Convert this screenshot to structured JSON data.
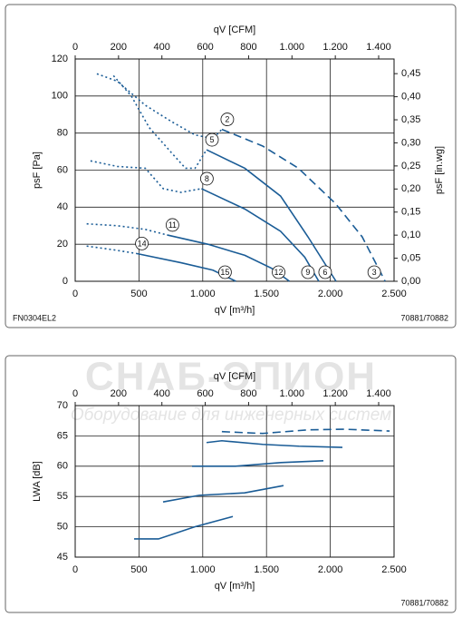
{
  "watermark": {
    "title": "СНАБ-ЭПИОН",
    "subtitle": "Оборудование для инженерных систем"
  },
  "chart_data": [
    {
      "type": "line",
      "x_label": "qV [m³/h]",
      "x2_label": "qV [CFM]",
      "y_label": "psF [Pa]",
      "y2_label": "psF [in.wg]",
      "note_left": "FN0304EL2",
      "note_right": "70881/70882",
      "xlim": [
        0,
        2500
      ],
      "xticks": [
        0,
        500,
        {
          "value": 1000,
          "label": "1.000"
        },
        {
          "value": 1500,
          "label": "1.500"
        },
        {
          "value": 2000,
          "label": "2.000"
        },
        {
          "value": 2500,
          "label": "2.500"
        }
      ],
      "x2lim": [
        0,
        1471
      ],
      "x2ticks": [
        0,
        200,
        400,
        600,
        800,
        {
          "value": 1000,
          "label": "1.000"
        },
        {
          "value": 1200,
          "label": "1.200"
        },
        {
          "value": 1400,
          "label": "1.400"
        }
      ],
      "ylim": [
        0,
        120
      ],
      "yticks": [
        0,
        20,
        40,
        60,
        80,
        100,
        120
      ],
      "y2lim": [
        0,
        0.4818
      ],
      "y2ticks": [
        {
          "value": 0,
          "label": "0,00"
        },
        {
          "value": 0.05,
          "label": "0,05"
        },
        {
          "value": 0.1,
          "label": "0,10"
        },
        {
          "value": 0.15,
          "label": "0,15"
        },
        {
          "value": 0.2,
          "label": "0,20"
        },
        {
          "value": 0.25,
          "label": "0,25"
        },
        {
          "value": 0.3,
          "label": "0,30"
        },
        {
          "value": 0.35,
          "label": "0,35"
        },
        {
          "value": 0.4,
          "label": "0,40"
        },
        {
          "value": 0.45,
          "label": "0,45"
        }
      ],
      "grid": true,
      "series": [
        {
          "color": "#1a5c96",
          "style": "dotted",
          "x": [
            170,
            330,
            550,
            760,
            940,
            1080,
            1150
          ],
          "values": [
            112,
            108,
            95,
            86,
            79,
            77,
            82
          ]
        },
        {
          "color": "#1a5c96",
          "style": "dashed",
          "start_label": "2",
          "end_label": "3",
          "x": [
            1150,
            1470,
            1750,
            2040,
            2250,
            2430
          ],
          "values": [
            82,
            73,
            61,
            42,
            24,
            0
          ]
        },
        {
          "color": "#1a5c96",
          "style": "dotted",
          "x": [
            300,
            440,
            580,
            760,
            865,
            940,
            1030
          ],
          "values": [
            111,
            100,
            83,
            69,
            61,
            61,
            71
          ]
        },
        {
          "color": "#1a5c96",
          "style": "solid",
          "start_label": "5",
          "end_label": "6",
          "x": [
            1030,
            1330,
            1610,
            1825,
            2045
          ],
          "values": [
            71,
            61,
            46,
            24,
            0
          ]
        },
        {
          "color": "#1a5c96",
          "style": "dotted",
          "x": [
            120,
            330,
            550,
            690,
            830,
            990
          ],
          "values": [
            65,
            62,
            61,
            50,
            48,
            50
          ]
        },
        {
          "color": "#1a5c96",
          "style": "solid",
          "start_label": "8",
          "end_label": "9",
          "x": [
            990,
            1330,
            1610,
            1800,
            1910
          ],
          "values": [
            50,
            39,
            27,
            13,
            0
          ]
        },
        {
          "color": "#1a5c96",
          "style": "dotted",
          "x": [
            90,
            330,
            550,
            720
          ],
          "values": [
            31,
            30,
            28,
            25
          ]
        },
        {
          "color": "#1a5c96",
          "style": "solid",
          "start_label": "11",
          "end_label": "12",
          "x": [
            720,
            1040,
            1330,
            1540,
            1680
          ],
          "values": [
            25,
            20,
            14,
            7,
            0
          ]
        },
        {
          "color": "#1a5c96",
          "style": "dotted",
          "x": [
            90,
            300,
            480
          ],
          "values": [
            19,
            17,
            15
          ]
        },
        {
          "color": "#1a5c96",
          "style": "solid",
          "start_label": "14",
          "end_label": "15",
          "x": [
            480,
            830,
            1080,
            1260
          ],
          "values": [
            15,
            10,
            6,
            0
          ]
        }
      ]
    },
    {
      "type": "line",
      "x_label": "qV [m³/h]",
      "x2_label": "qV [CFM]",
      "y_label": "LWA [dB]",
      "note_right": "70881/70882",
      "xlim": [
        0,
        2500
      ],
      "xticks": [
        0,
        500,
        {
          "value": 1000,
          "label": "1.000"
        },
        {
          "value": 1500,
          "label": "1.500"
        },
        {
          "value": 2000,
          "label": "2.000"
        },
        {
          "value": 2500,
          "label": "2.500"
        }
      ],
      "x2lim": [
        0,
        1471
      ],
      "x2ticks": [
        0,
        200,
        400,
        600,
        800,
        {
          "value": 1000,
          "label": "1.000"
        },
        {
          "value": 1200,
          "label": "1.200"
        },
        {
          "value": 1400,
          "label": "1.400"
        }
      ],
      "ylim": [
        45,
        70
      ],
      "yticks": [
        45,
        50,
        55,
        60,
        65,
        70
      ],
      "grid": true,
      "series": [
        {
          "color": "#1a5c96",
          "style": "dashed",
          "x": [
            1150,
            1470,
            1825,
            2110,
            2465
          ],
          "values": [
            65.7,
            65.4,
            66,
            66.1,
            65.8
          ]
        },
        {
          "color": "#1a5c96",
          "style": "solid",
          "x": [
            1030,
            1150,
            1470,
            1754,
            2095
          ],
          "values": [
            63.9,
            64.2,
            63.6,
            63.3,
            63.1
          ]
        },
        {
          "color": "#1a5c96",
          "style": "solid",
          "x": [
            916,
            1257,
            1612,
            1946
          ],
          "values": [
            60,
            60,
            60.6,
            60.9
          ]
        },
        {
          "color": "#1a5c96",
          "style": "solid",
          "x": [
            689,
            973,
            1328,
            1633
          ],
          "values": [
            54.1,
            55.2,
            55.6,
            56.8
          ]
        },
        {
          "color": "#1a5c96",
          "style": "solid",
          "x": [
            462,
            653,
            937,
            1236
          ],
          "values": [
            48,
            48,
            50,
            51.7
          ]
        }
      ]
    }
  ]
}
